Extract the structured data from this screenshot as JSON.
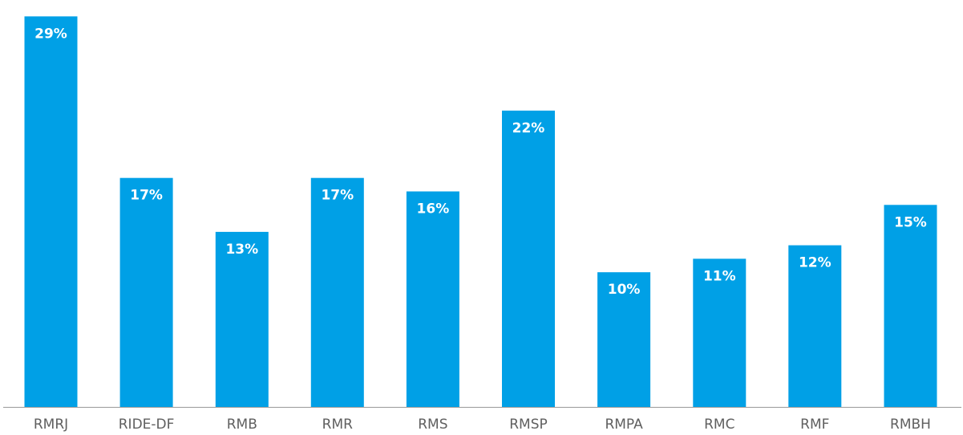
{
  "chart_data": {
    "type": "bar",
    "categories": [
      "RMRJ",
      "RIDE-DF",
      "RMB",
      "RMR",
      "RMS",
      "RMSP",
      "RMPA",
      "RMC",
      "RMF",
      "RMBH"
    ],
    "values": [
      29,
      17,
      13,
      17,
      16,
      22,
      10,
      11,
      12,
      15
    ],
    "value_labels": [
      "29%",
      "17%",
      "13%",
      "17%",
      "16%",
      "22%",
      "10%",
      "11%",
      "12%",
      "15%"
    ],
    "ylim": [
      0,
      29.5
    ],
    "grid": false,
    "bar_color": "#00A0E6",
    "label_color": "#FFFFFF",
    "axis_color": "#9A9A9A",
    "tick_label_color": "#5F5F5F"
  }
}
